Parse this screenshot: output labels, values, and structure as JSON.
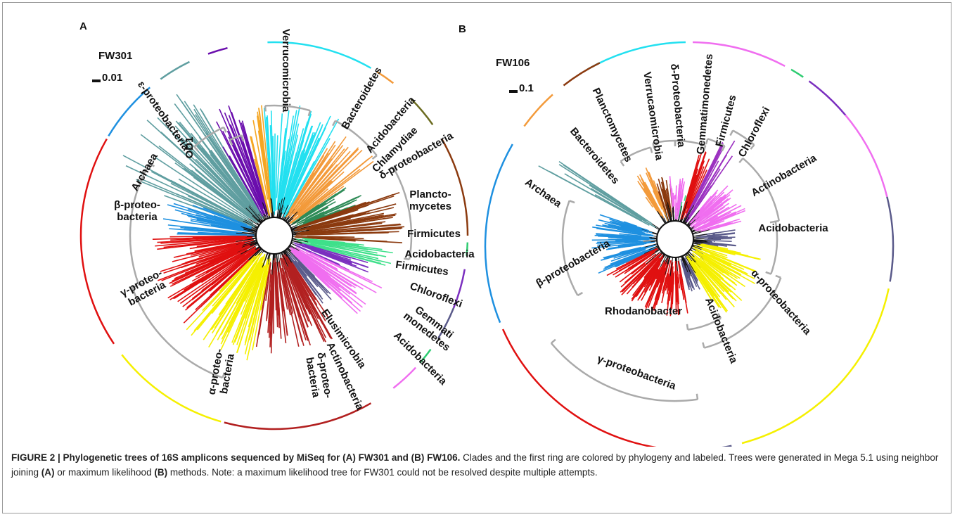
{
  "panel_a": {
    "letter": "A",
    "name": "FW301",
    "scale": "0.01",
    "clades": [
      {
        "lines": [
          "Verrucomicrobia"
        ]
      },
      {
        "lines": [
          "OD1"
        ]
      },
      {
        "lines": [
          "ε-proteobacteria"
        ]
      },
      {
        "lines": [
          "Archaea"
        ]
      },
      {
        "lines": [
          "Bacteroidetes"
        ]
      },
      {
        "lines": [
          "Acidobacteria"
        ]
      },
      {
        "lines": [
          "Chlamydiae"
        ]
      },
      {
        "lines": [
          "δ-proteobacteria"
        ]
      },
      {
        "lines": [
          "Plancto-",
          "mycetes"
        ]
      },
      {
        "lines": [
          "Firmicutes"
        ]
      },
      {
        "lines": [
          "Acidobacteria"
        ]
      },
      {
        "lines": [
          "Firmicutes"
        ]
      },
      {
        "lines": [
          "Chloroflexi"
        ]
      },
      {
        "lines": [
          "Gemmati",
          "monedetes"
        ]
      },
      {
        "lines": [
          "Acidobacteria"
        ]
      },
      {
        "lines": [
          "Elusimicrobia"
        ]
      },
      {
        "lines": [
          "Actinobacteria"
        ]
      },
      {
        "lines": [
          "δ-proteo-",
          "bacteria"
        ]
      },
      {
        "lines": [
          "α-proteo-",
          "bacteria"
        ]
      },
      {
        "lines": [
          "γ-proteo-",
          "bacteria"
        ]
      },
      {
        "lines": [
          "β-proteo-",
          "bacteria"
        ]
      }
    ]
  },
  "panel_b": {
    "letter": "B",
    "name": "FW106",
    "scale": "0.1",
    "clades": [
      {
        "lines": [
          "Archaea"
        ]
      },
      {
        "lines": [
          "Bacteroidetes"
        ]
      },
      {
        "lines": [
          "Planctomycetes"
        ]
      },
      {
        "lines": [
          "Verrucaomicrobia"
        ]
      },
      {
        "lines": [
          "δ-Proteobacteria"
        ]
      },
      {
        "lines": [
          "Gemmatimonedetes"
        ]
      },
      {
        "lines": [
          "Firmicutes"
        ]
      },
      {
        "lines": [
          "Chloroflexi"
        ]
      },
      {
        "lines": [
          "Actinobacteria"
        ]
      },
      {
        "lines": [
          "Acidobacteria"
        ]
      },
      {
        "lines": [
          "α-proteobacteria"
        ]
      },
      {
        "lines": [
          "Acidobacteria"
        ]
      },
      {
        "lines": [
          "Rhodanobacter"
        ]
      },
      {
        "lines": [
          "β-proteobacteria"
        ]
      },
      {
        "lines": [
          "γ-proteobacteria"
        ]
      }
    ]
  },
  "caption": {
    "title": "FIGURE 2 | Phylogenetic trees of 16S amplicons sequenced by MiSeq for (A) FW301 and (B) FW106.",
    "body": [
      " Clades and the first ring are colored by phylogeny and labeled. Trees were generated in Mega 5.1 using neighbor joining ",
      "(A)",
      " or maximum likelihood ",
      "(B)",
      " methods. Note: a maximum likelihood tree for FW301 could not be resolved despite multiple attempts."
    ]
  }
}
